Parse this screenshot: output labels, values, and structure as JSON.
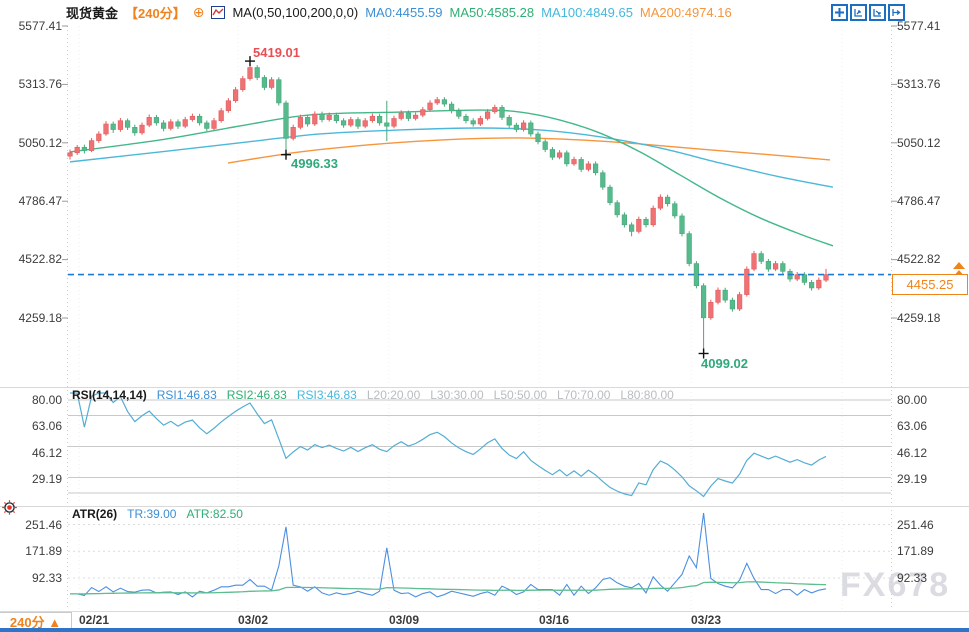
{
  "header": {
    "symbol": "现货黄金",
    "period": "【240分】",
    "add_indicator_icon": "circled-plus",
    "chart_type_icon": "candlestick-chart-icon",
    "ma_settings": "MA(0,50,100,200,0,0)",
    "ma_values": [
      {
        "text": "MA0:4455.59",
        "color": "#3c8fd4"
      },
      {
        "text": "MA50:4585.28",
        "color": "#2fae74"
      },
      {
        "text": "MA100:4849.65",
        "color": "#46b8dc"
      },
      {
        "text": "MA200:4974.16",
        "color": "#f5953d"
      }
    ],
    "toolbar_icons": [
      "crosshair-move-icon",
      "axis-scale-icon",
      "axis-pointer-icon",
      "shift-right-icon"
    ]
  },
  "main_axis": {
    "labels": [
      "5577.41",
      "5313.76",
      "5050.12",
      "4786.47",
      "4522.82",
      "4259.18"
    ]
  },
  "annotations": {
    "high": "5419.01",
    "low1": "4996.33",
    "low2": "4099.02",
    "current_price": "4455.25"
  },
  "rsi_panel": {
    "title": "RSI(14,14,14)",
    "values": [
      {
        "text": "RSI1:46.83",
        "color": "#3c8fd4"
      },
      {
        "text": "RSI2:46.83",
        "color": "#2fae74"
      },
      {
        "text": "RSI3:46.83",
        "color": "#46b8dc"
      }
    ],
    "levels_text": [
      "L20:20.00",
      "L30:30.00",
      "L50:50.00",
      "L70:70.00",
      "L80:80.00"
    ],
    "axis_labels": [
      "80.00",
      "63.06",
      "46.12",
      "29.19"
    ]
  },
  "atr_panel": {
    "title": "ATR(26)",
    "values": [
      {
        "text": "TR:39.00",
        "color": "#3c8fd4"
      },
      {
        "text": "ATR:82.50",
        "color": "#2fae74"
      }
    ],
    "axis_labels": [
      "251.46",
      "171.89",
      "92.33"
    ]
  },
  "x_axis": {
    "labels": [
      "02/21",
      "03/02",
      "03/09",
      "03/16",
      "03/23"
    ]
  },
  "footer": {
    "period_selector": "240分 ▲"
  },
  "watermark": "FX678",
  "colors": {
    "up_candle": "#ef7173",
    "up_stroke": "#e35d5f",
    "down_candle": "#57ba8c",
    "down_stroke": "#47a87a",
    "ma50": "#43b889",
    "ma100": "#4cb8d9",
    "ma200": "#f5953d",
    "rsi_line": "#54add4",
    "tr_line": "#4c8fe0",
    "atr_line": "#5cbd8e",
    "price_line": "#1f7ad4",
    "accent": "#f08418",
    "level_line": "#c9c9c9",
    "separator": "#d9d9d9"
  },
  "chart_data": {
    "type": "candlestick",
    "symbol": "现货黄金",
    "interval": "240分",
    "y_axis_main": [
      5577.41,
      5313.76,
      5050.12,
      4786.47,
      4522.82,
      4259.18
    ],
    "x_dates": [
      "02/21",
      "03/02",
      "03/09",
      "03/16",
      "03/23"
    ],
    "high_annotation": 5419.01,
    "low_annotations": [
      4996.33,
      4099.02
    ],
    "current_price": 4455.25,
    "annotated_indices": {
      "high": 25,
      "low1": 30,
      "low2": 88
    },
    "rsi": {
      "params": [
        14,
        14,
        14
      ],
      "current": [
        46.83,
        46.83,
        46.83
      ],
      "levels": [
        20,
        30,
        50,
        70,
        80
      ],
      "scale": [
        80.0,
        63.06,
        46.12,
        29.19
      ]
    },
    "atr": {
      "period": 26,
      "tr": 39.0,
      "atr": 82.5,
      "scale": [
        251.46,
        171.89,
        92.33
      ]
    },
    "ma50_anchors": [
      [
        70,
        5009
      ],
      [
        160,
        5063
      ],
      [
        240,
        5126
      ],
      [
        310,
        5176
      ],
      [
        400,
        5189
      ],
      [
        480,
        5198
      ],
      [
        520,
        5189
      ],
      [
        560,
        5153
      ],
      [
        600,
        5094
      ],
      [
        640,
        5009
      ],
      [
        680,
        4905
      ],
      [
        720,
        4801
      ],
      [
        760,
        4711
      ],
      [
        800,
        4638
      ],
      [
        833,
        4585
      ]
    ],
    "ma100_anchors": [
      [
        70,
        4964
      ],
      [
        160,
        5009
      ],
      [
        240,
        5050
      ],
      [
        320,
        5090
      ],
      [
        400,
        5108
      ],
      [
        480,
        5117
      ],
      [
        540,
        5108
      ],
      [
        600,
        5077
      ],
      [
        660,
        5027
      ],
      [
        720,
        4959
      ],
      [
        780,
        4896
      ],
      [
        833,
        4850
      ]
    ],
    "ma200_anchors": [
      [
        228,
        4959
      ],
      [
        300,
        5009
      ],
      [
        380,
        5045
      ],
      [
        460,
        5067
      ],
      [
        520,
        5072
      ],
      [
        580,
        5063
      ],
      [
        640,
        5045
      ],
      [
        700,
        5022
      ],
      [
        760,
        5000
      ],
      [
        830,
        4973
      ]
    ],
    "candles": [
      [
        4990,
        5020,
        4975,
        5005
      ],
      [
        5005,
        5040,
        4995,
        5030
      ],
      [
        5030,
        5042,
        5002,
        5015
      ],
      [
        5015,
        5072,
        5008,
        5060
      ],
      [
        5060,
        5102,
        5050,
        5090
      ],
      [
        5090,
        5148,
        5082,
        5135
      ],
      [
        5135,
        5146,
        5095,
        5110
      ],
      [
        5110,
        5162,
        5100,
        5150
      ],
      [
        5150,
        5160,
        5108,
        5120
      ],
      [
        5120,
        5132,
        5082,
        5095
      ],
      [
        5095,
        5142,
        5086,
        5130
      ],
      [
        5130,
        5178,
        5121,
        5165
      ],
      [
        5165,
        5176,
        5128,
        5140
      ],
      [
        5140,
        5152,
        5102,
        5115
      ],
      [
        5115,
        5157,
        5106,
        5145
      ],
      [
        5145,
        5156,
        5113,
        5125
      ],
      [
        5125,
        5167,
        5116,
        5155
      ],
      [
        5155,
        5182,
        5146,
        5170
      ],
      [
        5170,
        5181,
        5128,
        5140
      ],
      [
        5140,
        5151,
        5103,
        5115
      ],
      [
        5115,
        5162,
        5106,
        5150
      ],
      [
        5150,
        5207,
        5141,
        5195
      ],
      [
        5195,
        5252,
        5186,
        5240
      ],
      [
        5240,
        5302,
        5231,
        5290
      ],
      [
        5290,
        5352,
        5281,
        5340
      ],
      [
        5340,
        5419.01,
        5331,
        5390
      ],
      [
        5390,
        5401,
        5333,
        5345
      ],
      [
        5345,
        5356,
        5288,
        5300
      ],
      [
        5300,
        5347,
        5291,
        5335
      ],
      [
        5335,
        5346,
        5218,
        5230
      ],
      [
        5230,
        5241,
        4996.33,
        5070
      ],
      [
        5070,
        5132,
        5061,
        5120
      ],
      [
        5120,
        5177,
        5111,
        5165
      ],
      [
        5165,
        5176,
        5123,
        5135
      ],
      [
        5135,
        5192,
        5126,
        5180
      ],
      [
        5180,
        5191,
        5143,
        5155
      ],
      [
        5155,
        5187,
        5146,
        5175
      ],
      [
        5175,
        5186,
        5138,
        5150
      ],
      [
        5150,
        5161,
        5118,
        5130
      ],
      [
        5130,
        5167,
        5121,
        5155
      ],
      [
        5155,
        5166,
        5113,
        5125
      ],
      [
        5125,
        5162,
        5116,
        5150
      ],
      [
        5150,
        5182,
        5141,
        5170
      ],
      [
        5170,
        5181,
        5128,
        5140
      ],
      [
        5140,
        5240,
        5058,
        5125
      ],
      [
        5125,
        5172,
        5116,
        5160
      ],
      [
        5160,
        5197,
        5151,
        5185
      ],
      [
        5185,
        5196,
        5148,
        5160
      ],
      [
        5160,
        5187,
        5151,
        5175
      ],
      [
        5175,
        5212,
        5166,
        5200
      ],
      [
        5200,
        5242,
        5191,
        5230
      ],
      [
        5230,
        5257,
        5221,
        5245
      ],
      [
        5245,
        5256,
        5213,
        5225
      ],
      [
        5225,
        5236,
        5183,
        5195
      ],
      [
        5195,
        5206,
        5158,
        5170
      ],
      [
        5170,
        5181,
        5138,
        5150
      ],
      [
        5150,
        5161,
        5123,
        5135
      ],
      [
        5135,
        5172,
        5126,
        5160
      ],
      [
        5160,
        5202,
        5151,
        5190
      ],
      [
        5190,
        5222,
        5181,
        5210
      ],
      [
        5210,
        5221,
        5153,
        5165
      ],
      [
        5165,
        5176,
        5118,
        5130
      ],
      [
        5130,
        5141,
        5098,
        5110
      ],
      [
        5110,
        5152,
        5101,
        5140
      ],
      [
        5140,
        5151,
        5078,
        5090
      ],
      [
        5090,
        5101,
        5043,
        5055
      ],
      [
        5055,
        5066,
        5008,
        5020
      ],
      [
        5020,
        5031,
        4973,
        4985
      ],
      [
        4985,
        5017,
        4976,
        5005
      ],
      [
        5005,
        5016,
        4943,
        4955
      ],
      [
        4955,
        4987,
        4946,
        4975
      ],
      [
        4975,
        4986,
        4918,
        4930
      ],
      [
        4930,
        4967,
        4921,
        4955
      ],
      [
        4955,
        4966,
        4903,
        4915
      ],
      [
        4915,
        4926,
        4838,
        4850
      ],
      [
        4850,
        4861,
        4768,
        4780
      ],
      [
        4780,
        4791,
        4713,
        4725
      ],
      [
        4725,
        4736,
        4668,
        4680
      ],
      [
        4680,
        4691,
        4628,
        4650
      ],
      [
        4650,
        4717,
        4641,
        4705
      ],
      [
        4705,
        4716,
        4668,
        4680
      ],
      [
        4680,
        4767,
        4671,
        4755
      ],
      [
        4755,
        4817,
        4746,
        4805
      ],
      [
        4805,
        4816,
        4763,
        4775
      ],
      [
        4775,
        4786,
        4708,
        4720
      ],
      [
        4720,
        4731,
        4628,
        4640
      ],
      [
        4640,
        4651,
        4493,
        4505
      ],
      [
        4505,
        4516,
        4393,
        4405
      ],
      [
        4405,
        4416,
        4099.02,
        4260
      ],
      [
        4260,
        4342,
        4251,
        4330
      ],
      [
        4330,
        4397,
        4321,
        4385
      ],
      [
        4385,
        4396,
        4328,
        4340
      ],
      [
        4340,
        4351,
        4288,
        4300
      ],
      [
        4300,
        4377,
        4291,
        4365
      ],
      [
        4365,
        4492,
        4356,
        4480
      ],
      [
        4480,
        4562,
        4471,
        4550
      ],
      [
        4550,
        4561,
        4503,
        4515
      ],
      [
        4515,
        4526,
        4468,
        4480
      ],
      [
        4480,
        4517,
        4471,
        4505
      ],
      [
        4505,
        4516,
        4458,
        4470
      ],
      [
        4470,
        4481,
        4423,
        4435
      ],
      [
        4435,
        4467,
        4426,
        4455
      ],
      [
        4455,
        4466,
        4408,
        4420
      ],
      [
        4420,
        4431,
        4383,
        4395
      ],
      [
        4395,
        4442,
        4386,
        4430
      ],
      [
        4430,
        4481,
        4421,
        4455.25
      ]
    ]
  }
}
